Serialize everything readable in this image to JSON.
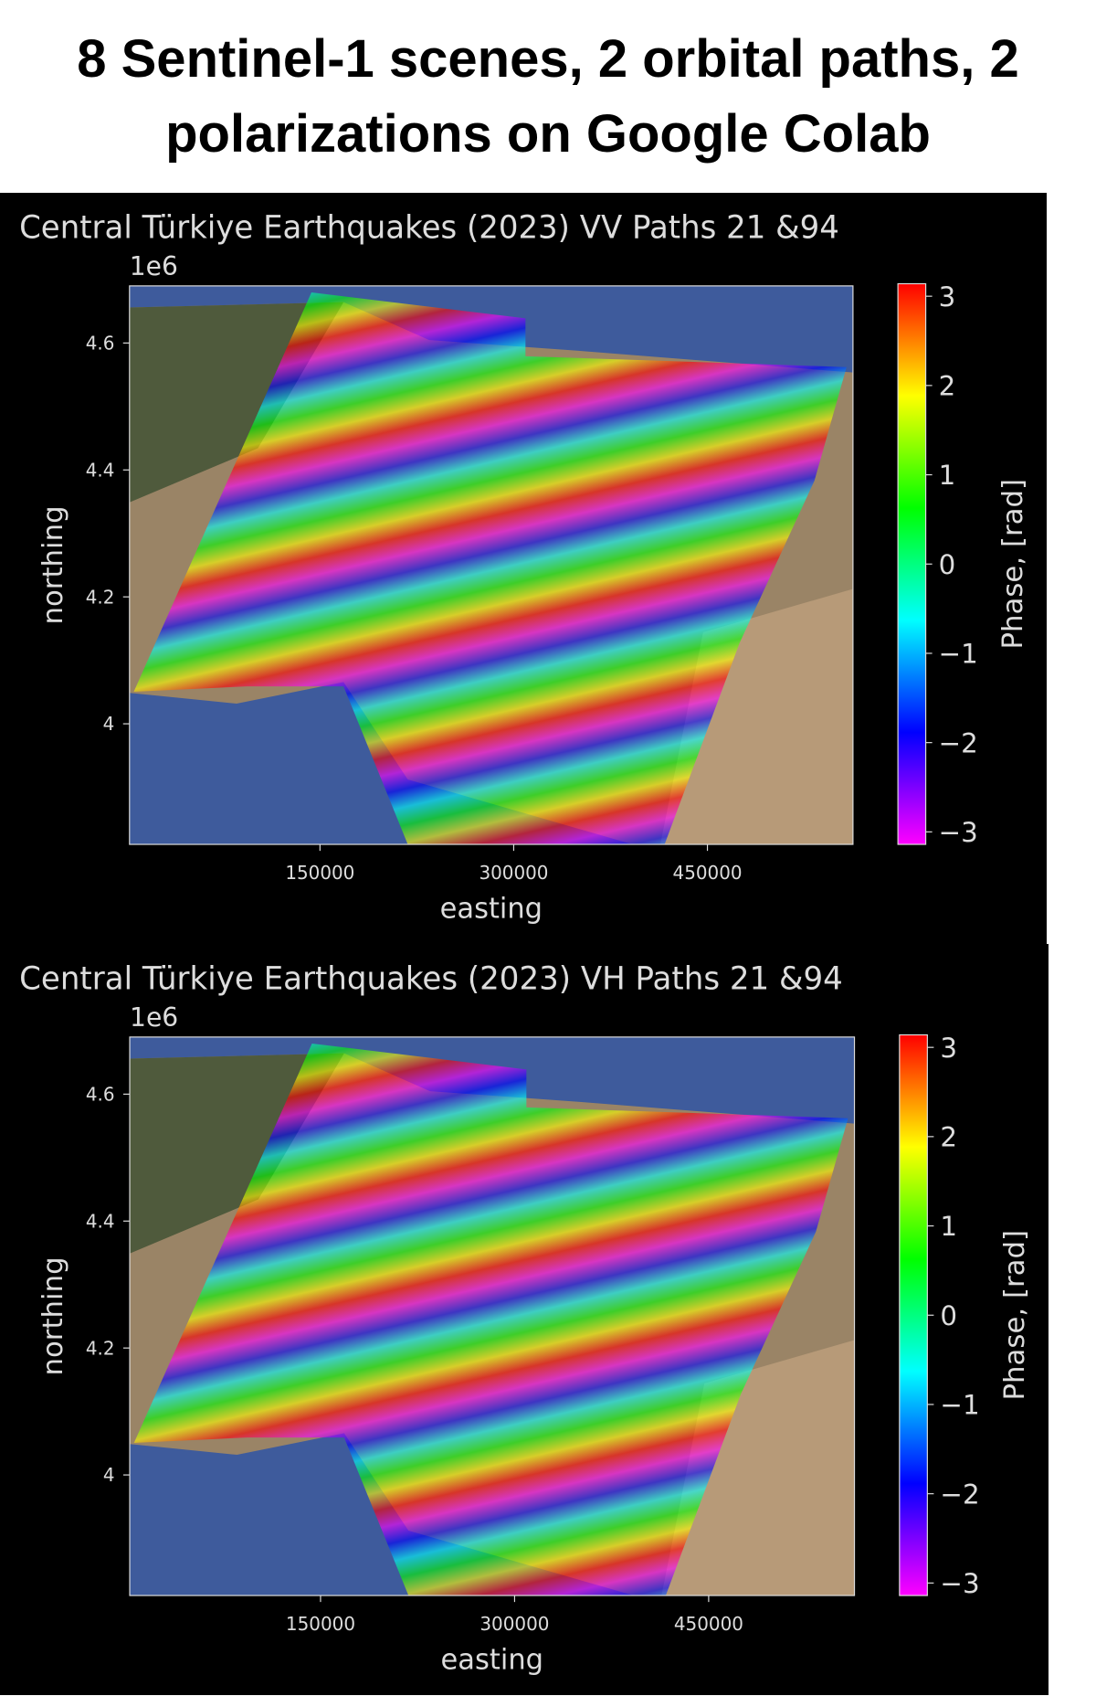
{
  "title": "8 Sentinel-1 scenes, 2 orbital paths, 2 polarizations on Google Colab",
  "chart_data": [
    {
      "type": "map",
      "title": "Central Türkiye Earthquakes (2023) VV Paths 21 &94",
      "xlabel": "easting",
      "ylabel": "northing",
      "y_offset_label": "1e6",
      "xlim": [
        2500,
        562700
      ],
      "xticks": [
        150000,
        300000,
        450000
      ],
      "ylim": [
        3.81,
        4.69
      ],
      "yticks": [
        4.0,
        4.2,
        4.4,
        4.6
      ],
      "colorbar": {
        "label": "Phase, [rad]",
        "lim": [
          -3.14,
          3.14
        ],
        "ticks": [
          {
            "value": 3,
            "label": "3"
          },
          {
            "value": 2,
            "label": "2"
          },
          {
            "value": 1,
            "label": "1"
          },
          {
            "value": 0,
            "label": "0"
          },
          {
            "value": -1,
            "label": "−1"
          },
          {
            "value": -2,
            "label": "−2"
          },
          {
            "value": -3,
            "label": "−3"
          }
        ],
        "colormap": [
          "#ff00ff",
          "#0000ff",
          "#00ffff",
          "#00ff00",
          "#ffff00",
          "#ff0000"
        ]
      }
    },
    {
      "type": "map",
      "title": "Central Türkiye Earthquakes (2023) VH Paths 21 &94",
      "xlabel": "easting",
      "ylabel": "northing",
      "y_offset_label": "1e6",
      "xlim": [
        2500,
        562700
      ],
      "xticks": [
        150000,
        300000,
        450000
      ],
      "ylim": [
        3.81,
        4.69
      ],
      "yticks": [
        4.0,
        4.2,
        4.4,
        4.6
      ],
      "colorbar": {
        "label": "Phase, [rad]",
        "lim": [
          -3.14,
          3.14
        ],
        "ticks": [
          {
            "value": 3,
            "label": "3"
          },
          {
            "value": 2,
            "label": "2"
          },
          {
            "value": 1,
            "label": "1"
          },
          {
            "value": 0,
            "label": "0"
          },
          {
            "value": -1,
            "label": "−1"
          },
          {
            "value": -2,
            "label": "−2"
          },
          {
            "value": -3,
            "label": "−3"
          }
        ],
        "colormap": [
          "#ff00ff",
          "#0000ff",
          "#00ffff",
          "#00ff00",
          "#ffff00",
          "#ff0000"
        ]
      }
    }
  ]
}
